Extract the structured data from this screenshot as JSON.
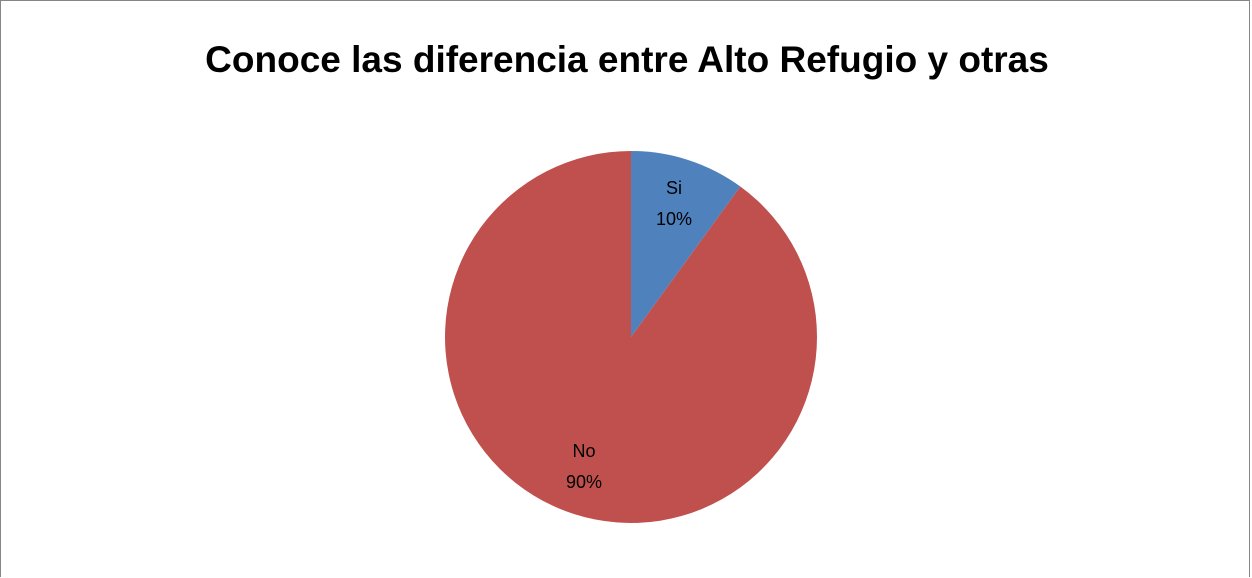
{
  "chart_data": {
    "type": "pie",
    "title": "Conoce las diferencia entre Alto Refugio y otras",
    "slices": [
      {
        "label": "Si",
        "value": 10,
        "percent_label": "10%",
        "color": "#4F81BD"
      },
      {
        "label": "No",
        "value": 90,
        "percent_label": "90%",
        "color": "#C0504D"
      }
    ],
    "legend": "none",
    "data_labels": "inside"
  }
}
